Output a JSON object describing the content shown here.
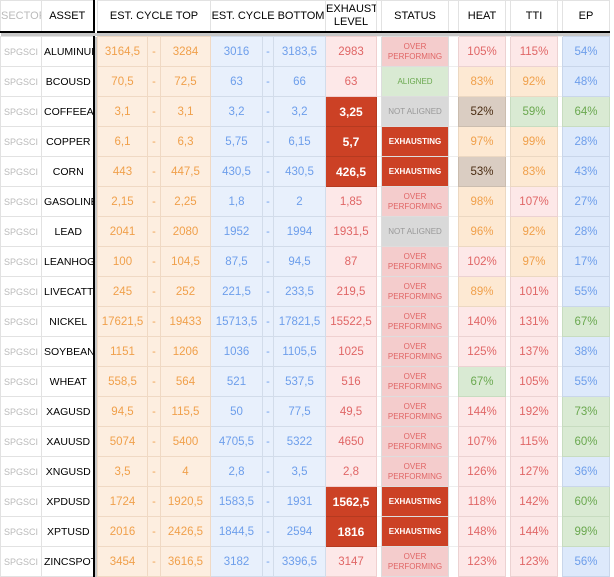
{
  "headers": {
    "sector": "SECTOR",
    "asset": "ASSET",
    "cycle_top": "EST. CYCLE TOP",
    "cycle_bottom": "EST. CYCLE BOTTOM",
    "exhaust_level": "EXHAUST LEVEL",
    "status": "STATUS",
    "heat": "HEAT",
    "tti": "TTI",
    "ep": "EP"
  },
  "dash": "-",
  "status_labels": {
    "over": "OVER PERFORMING",
    "aligned": "ALIGNED",
    "notaligned": "NOT ALIGNED",
    "exhausting": "EXHAUSTING"
  },
  "colors": {
    "exhausting": "#cc4125",
    "over": "#f4cccc",
    "aligned": "#d9ead3",
    "notaligned": "#d9d9d9"
  },
  "rows": [
    {
      "sector": "SPGSCI",
      "asset": "ALUMINUM",
      "top_lo": "3164,5",
      "top_hi": "3284",
      "bot_lo": "3016",
      "bot_hi": "3183,5",
      "exhaust": "2983",
      "exhaust_alert": false,
      "status": "over",
      "heat": "105%",
      "tti": "115%",
      "ep": "54%"
    },
    {
      "sector": "SPGSCI",
      "asset": "BCOUSD",
      "top_lo": "70,5",
      "top_hi": "72,5",
      "bot_lo": "63",
      "bot_hi": "66",
      "exhaust": "63",
      "exhaust_alert": false,
      "status": "aligned",
      "heat": "83%",
      "tti": "92%",
      "ep": "48%"
    },
    {
      "sector": "SPGSCI",
      "asset": "COFFEEAR",
      "top_lo": "3,1",
      "top_hi": "3,1",
      "bot_lo": "3,2",
      "bot_hi": "3,2",
      "exhaust": "3,25",
      "exhaust_alert": true,
      "status": "notaligned",
      "heat": "52%",
      "tti": "59%",
      "ep": "64%"
    },
    {
      "sector": "SPGSCI",
      "asset": "COPPER",
      "top_lo": "6,1",
      "top_hi": "6,3",
      "bot_lo": "5,75",
      "bot_hi": "6,15",
      "exhaust": "5,7",
      "exhaust_alert": true,
      "status": "exhausting",
      "heat": "97%",
      "tti": "99%",
      "ep": "28%"
    },
    {
      "sector": "SPGSCI",
      "asset": "CORN",
      "top_lo": "443",
      "top_hi": "447,5",
      "bot_lo": "430,5",
      "bot_hi": "430,5",
      "exhaust": "426,5",
      "exhaust_alert": true,
      "status": "exhausting",
      "heat": "53%",
      "tti": "83%",
      "ep": "43%"
    },
    {
      "sector": "SPGSCI",
      "asset": "GASOLINE",
      "top_lo": "2,15",
      "top_hi": "2,25",
      "bot_lo": "1,8",
      "bot_hi": "2",
      "exhaust": "1,85",
      "exhaust_alert": false,
      "status": "over",
      "heat": "98%",
      "tti": "107%",
      "ep": "27%"
    },
    {
      "sector": "SPGSCI",
      "asset": "LEAD",
      "top_lo": "2041",
      "top_hi": "2080",
      "bot_lo": "1952",
      "bot_hi": "1994",
      "exhaust": "1931,5",
      "exhaust_alert": false,
      "status": "notaligned",
      "heat": "96%",
      "tti": "92%",
      "ep": "28%"
    },
    {
      "sector": "SPGSCI",
      "asset": "LEANHOGS",
      "top_lo": "100",
      "top_hi": "104,5",
      "bot_lo": "87,5",
      "bot_hi": "94,5",
      "exhaust": "87",
      "exhaust_alert": false,
      "status": "over",
      "heat": "102%",
      "tti": "97%",
      "ep": "17%"
    },
    {
      "sector": "SPGSCI",
      "asset": "LIVECATTLE",
      "top_lo": "245",
      "top_hi": "252",
      "bot_lo": "221,5",
      "bot_hi": "233,5",
      "exhaust": "219,5",
      "exhaust_alert": false,
      "status": "over",
      "heat": "89%",
      "tti": "101%",
      "ep": "55%"
    },
    {
      "sector": "SPGSCI",
      "asset": "NICKEL",
      "top_lo": "17621,5",
      "top_hi": "19433",
      "bot_lo": "15713,5",
      "bot_hi": "17821,5",
      "exhaust": "15522,5",
      "exhaust_alert": false,
      "status": "over",
      "heat": "140%",
      "tti": "131%",
      "ep": "67%"
    },
    {
      "sector": "SPGSCI",
      "asset": "SOYBEAN",
      "top_lo": "1151",
      "top_hi": "1206",
      "bot_lo": "1036",
      "bot_hi": "1105,5",
      "exhaust": "1025",
      "exhaust_alert": false,
      "status": "over",
      "heat": "125%",
      "tti": "137%",
      "ep": "38%"
    },
    {
      "sector": "SPGSCI",
      "asset": "WHEAT",
      "top_lo": "558,5",
      "top_hi": "564",
      "bot_lo": "521",
      "bot_hi": "537,5",
      "exhaust": "516",
      "exhaust_alert": false,
      "status": "over",
      "heat": "67%",
      "tti": "105%",
      "ep": "55%"
    },
    {
      "sector": "SPGSCI",
      "asset": "XAGUSD",
      "top_lo": "94,5",
      "top_hi": "115,5",
      "bot_lo": "50",
      "bot_hi": "77,5",
      "exhaust": "49,5",
      "exhaust_alert": false,
      "status": "over",
      "heat": "144%",
      "tti": "192%",
      "ep": "73%"
    },
    {
      "sector": "SPGSCI",
      "asset": "XAUUSD",
      "top_lo": "5074",
      "top_hi": "5400",
      "bot_lo": "4705,5",
      "bot_hi": "5322",
      "exhaust": "4650",
      "exhaust_alert": false,
      "status": "over",
      "heat": "107%",
      "tti": "115%",
      "ep": "60%"
    },
    {
      "sector": "SPGSCI",
      "asset": "XNGUSD",
      "top_lo": "3,5",
      "top_hi": "4",
      "bot_lo": "2,8",
      "bot_hi": "3,5",
      "exhaust": "2,8",
      "exhaust_alert": false,
      "status": "over",
      "heat": "126%",
      "tti": "127%",
      "ep": "36%"
    },
    {
      "sector": "SPGSCI",
      "asset": "XPDUSD",
      "top_lo": "1724",
      "top_hi": "1920,5",
      "bot_lo": "1583,5",
      "bot_hi": "1931",
      "exhaust": "1562,5",
      "exhaust_alert": true,
      "status": "exhausting",
      "heat": "118%",
      "tti": "142%",
      "ep": "60%"
    },
    {
      "sector": "SPGSCI",
      "asset": "XPTUSD",
      "top_lo": "2016",
      "top_hi": "2426,5",
      "bot_lo": "1844,5",
      "bot_hi": "2594",
      "exhaust": "1816",
      "exhaust_alert": true,
      "status": "exhausting",
      "heat": "148%",
      "tti": "144%",
      "ep": "99%"
    },
    {
      "sector": "SPGSCI",
      "asset": "ZINCSPOT",
      "top_lo": "3454",
      "top_hi": "3616,5",
      "bot_lo": "3182",
      "bot_hi": "3396,5",
      "exhaust": "3147",
      "exhaust_alert": false,
      "status": "over",
      "heat": "123%",
      "tti": "123%",
      "ep": "56%"
    }
  ]
}
